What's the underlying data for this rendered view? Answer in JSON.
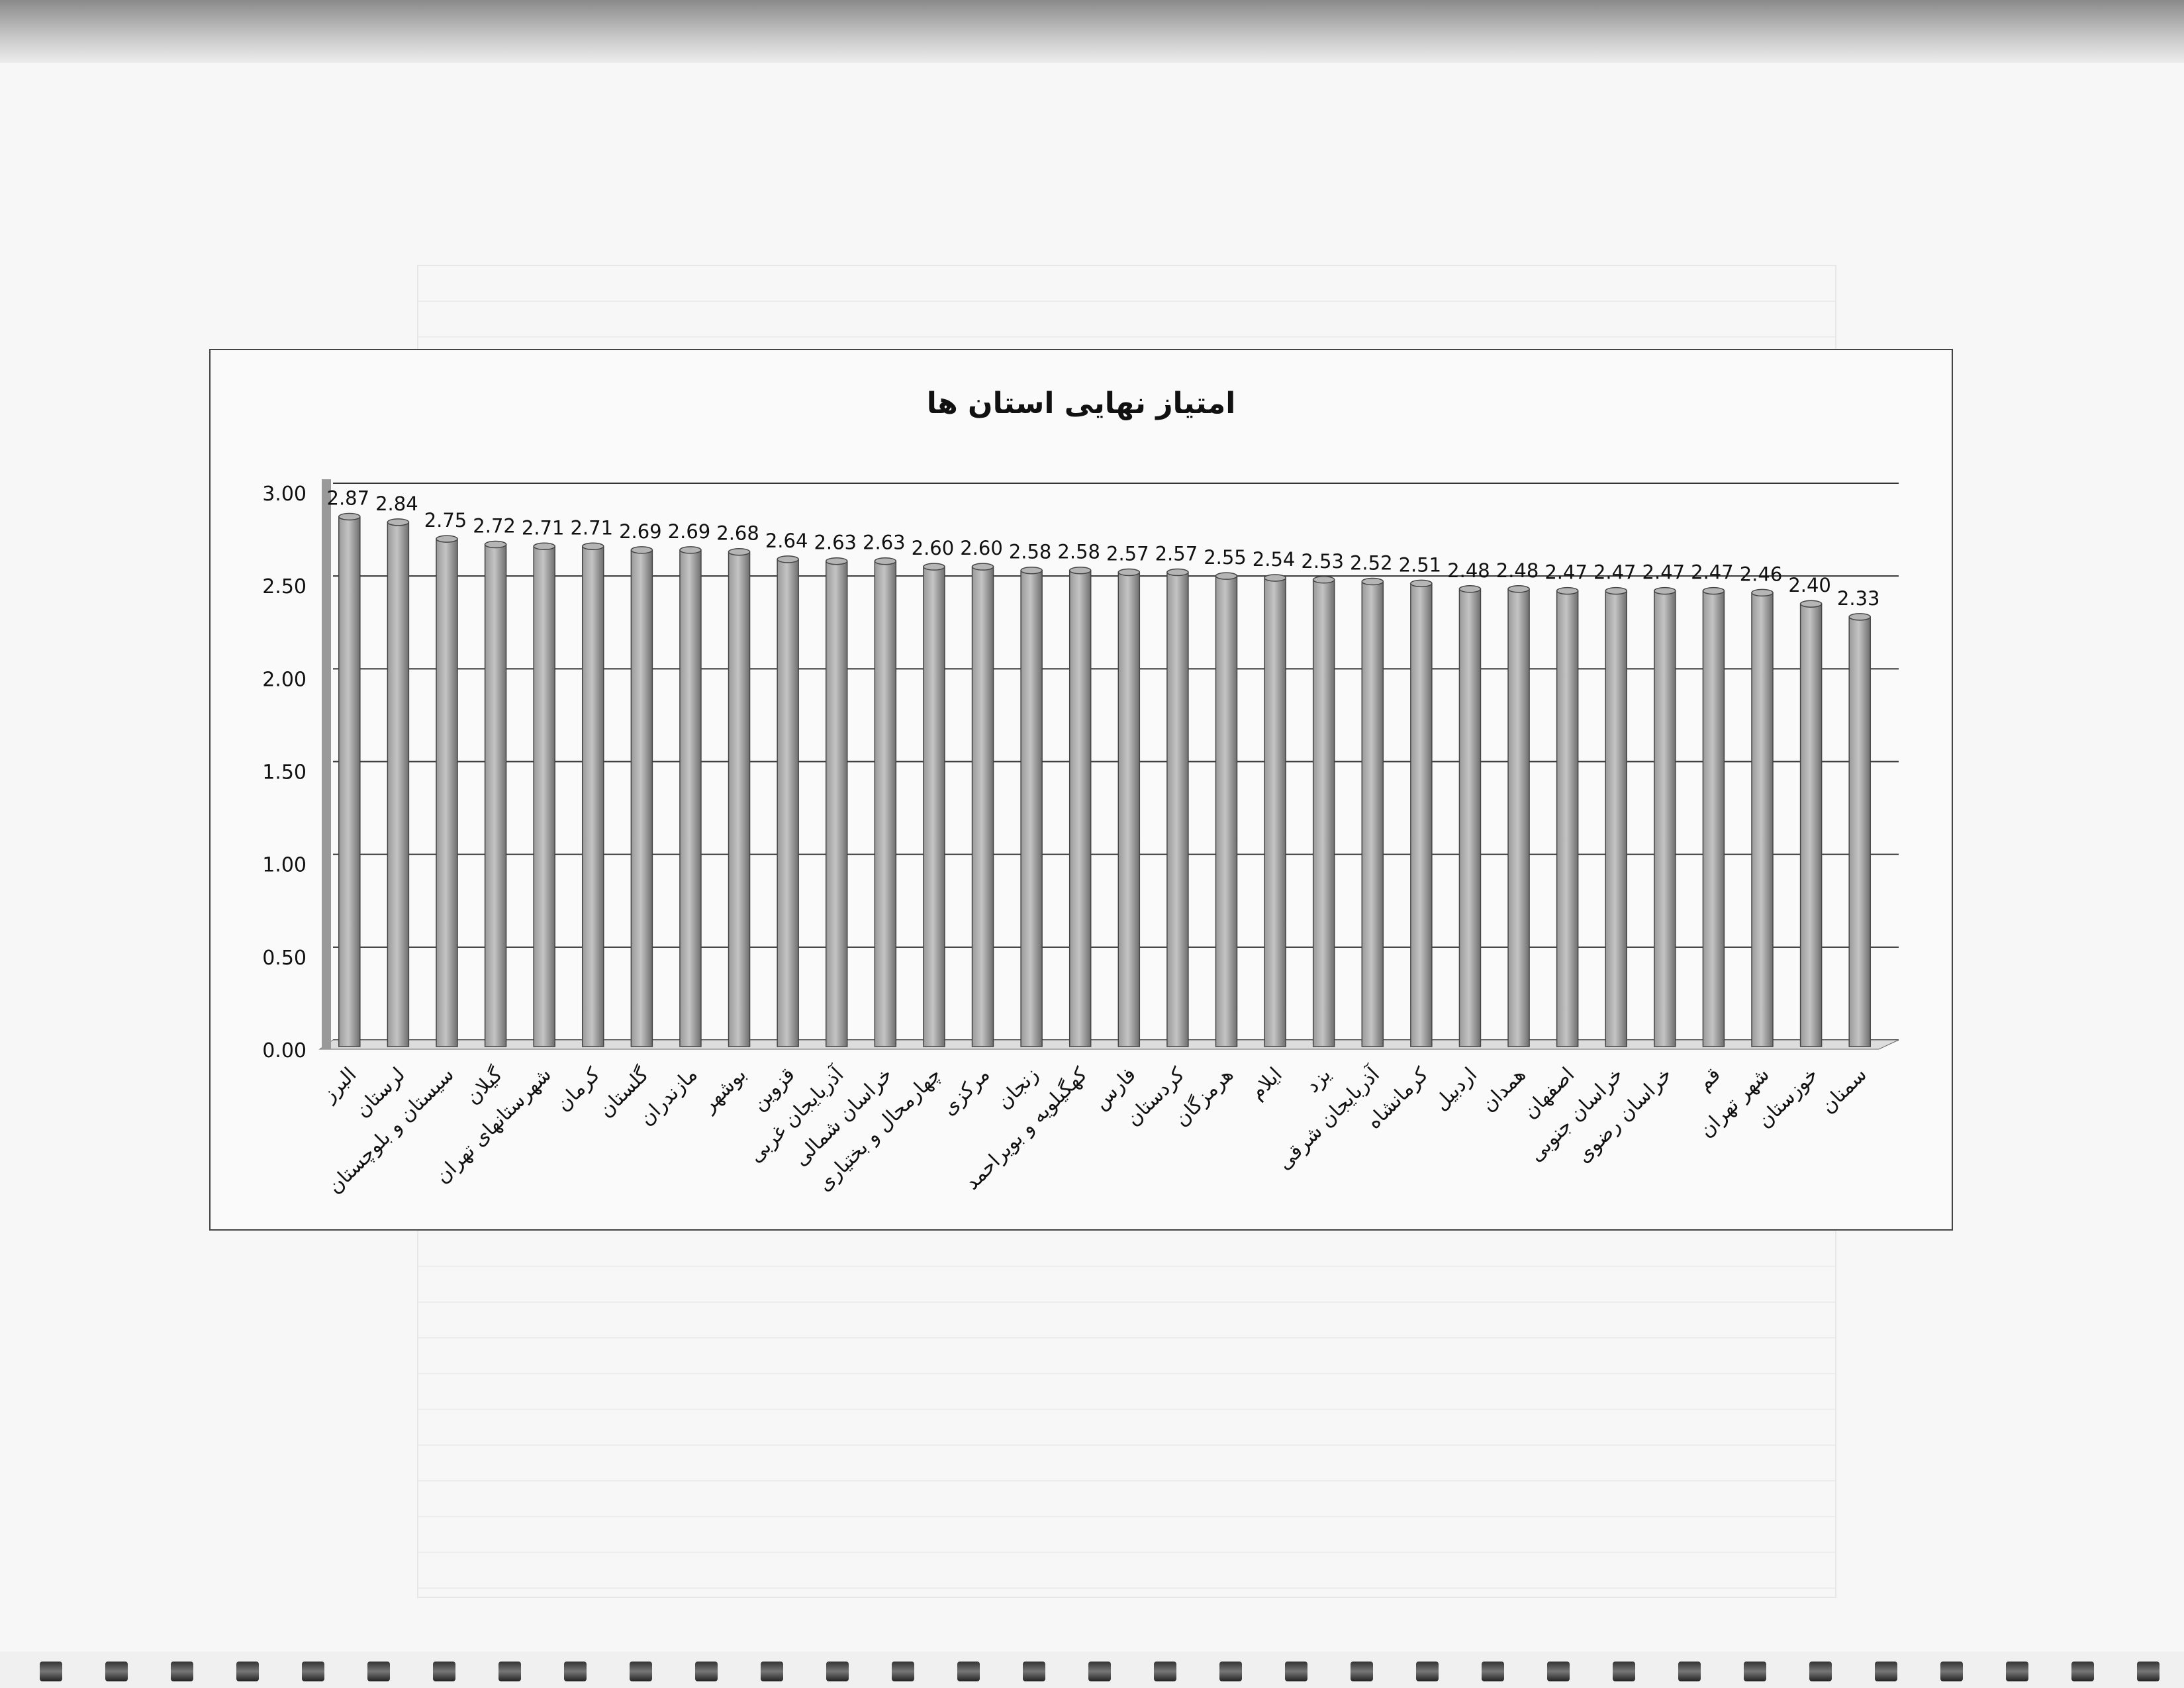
{
  "chart_data": {
    "type": "bar",
    "title": "امتیاز نهایی استان ها",
    "categories": [
      "البرز",
      "لرستان",
      "سیستان و بلوچستان",
      "گیلان",
      "شهرستانهای تهران",
      "کرمان",
      "گلستان",
      "مازندران",
      "بوشهر",
      "قزوین",
      "آذربایجان غربی",
      "خراسان شمالی",
      "چهارمحال و بختیاری",
      "مرکزی",
      "زنجان",
      "کهگیلویه و بویراحمد",
      "فارس",
      "کردستان",
      "هرمزگان",
      "ایلام",
      "یزد",
      "آذربایجان شرقی",
      "کرمانشاه",
      "اردبیل",
      "همدان",
      "اصفهان",
      "خراسان جنوبی",
      "خراسان رضوی",
      "قم",
      "شهر تهران",
      "خوزستان",
      "سمنان"
    ],
    "values": [
      2.87,
      2.84,
      2.75,
      2.72,
      2.71,
      2.71,
      2.69,
      2.69,
      2.68,
      2.64,
      2.63,
      2.63,
      2.6,
      2.6,
      2.58,
      2.58,
      2.57,
      2.57,
      2.55,
      2.54,
      2.53,
      2.52,
      2.51,
      2.48,
      2.48,
      2.47,
      2.47,
      2.47,
      2.47,
      2.46,
      2.4,
      2.33
    ],
    "yticks": [
      "0.00",
      "0.50",
      "1.00",
      "1.50",
      "2.00",
      "2.50",
      "3.00"
    ],
    "ylim": [
      0,
      3
    ],
    "grid": true,
    "style": "3d-column",
    "bar_color": "#8c8c8c"
  }
}
